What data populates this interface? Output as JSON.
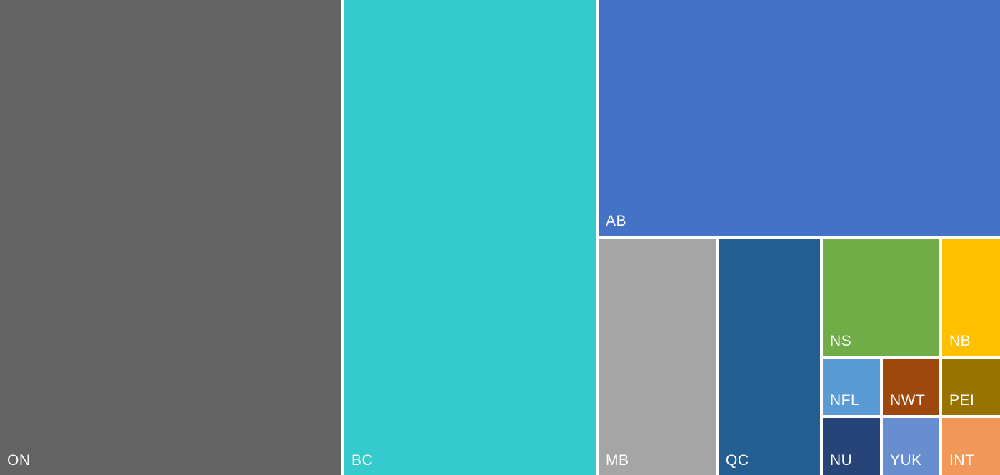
{
  "chart_data": {
    "type": "treemap",
    "items": [
      {
        "label": "ON",
        "color": "#636363"
      },
      {
        "label": "BC",
        "color": "#35CBCC"
      },
      {
        "label": "AB",
        "color": "#4472C6"
      },
      {
        "label": "MB",
        "color": "#A5A5A5"
      },
      {
        "label": "QC",
        "color": "#255E90"
      },
      {
        "label": "NS",
        "color": "#70AD47"
      },
      {
        "label": "NB",
        "color": "#FFC000"
      },
      {
        "label": "NFL",
        "color": "#5B9BD5"
      },
      {
        "label": "NWT",
        "color": "#9E480E"
      },
      {
        "label": "PEI",
        "color": "#997300"
      },
      {
        "label": "NU",
        "color": "#264478"
      },
      {
        "label": "YUK",
        "color": "#698ED0"
      },
      {
        "label": "INT",
        "color": "#F1975A"
      }
    ]
  }
}
